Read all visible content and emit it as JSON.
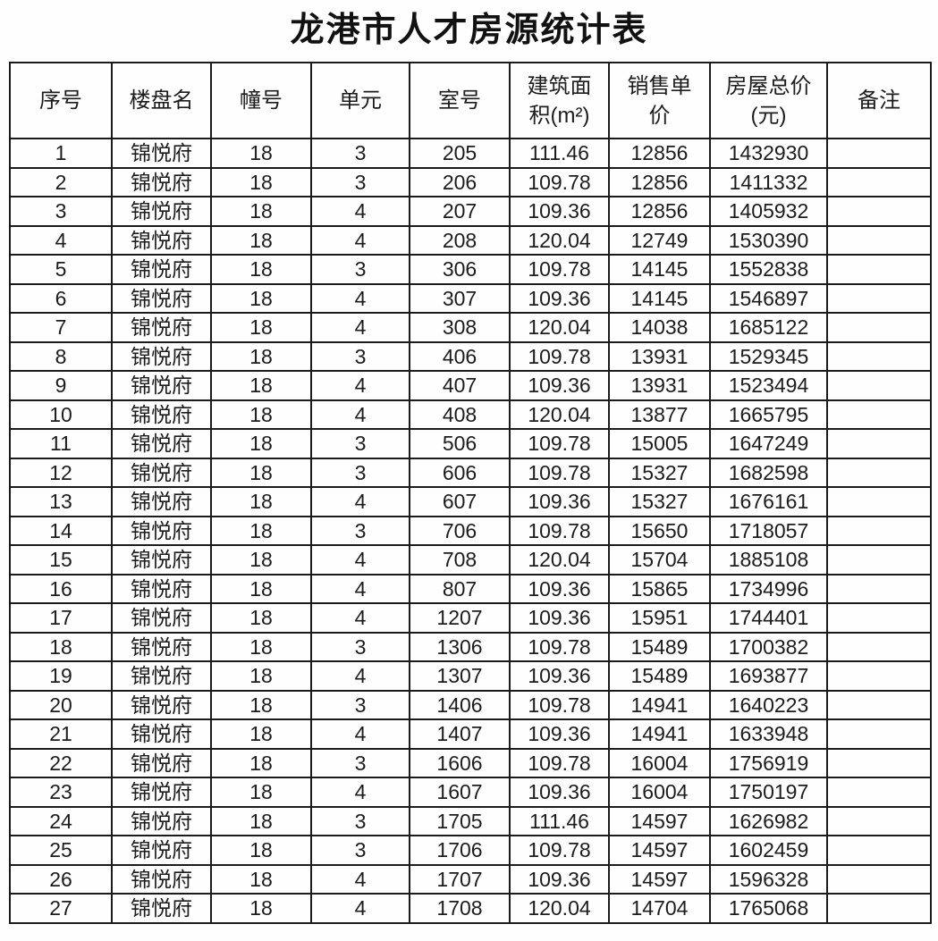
{
  "title": "龙港市人才房源统计表",
  "table": {
    "headers": [
      "序号",
      "楼盘名",
      "幢号",
      "单元",
      "室号",
      "建筑面\n积(m²)",
      "销售单\n价",
      "房屋总价\n(元)",
      "备注"
    ],
    "rows": [
      [
        "1",
        "锦悦府",
        "18",
        "3",
        "205",
        "111.46",
        "12856",
        "1432930",
        ""
      ],
      [
        "2",
        "锦悦府",
        "18",
        "3",
        "206",
        "109.78",
        "12856",
        "1411332",
        ""
      ],
      [
        "3",
        "锦悦府",
        "18",
        "4",
        "207",
        "109.36",
        "12856",
        "1405932",
        ""
      ],
      [
        "4",
        "锦悦府",
        "18",
        "4",
        "208",
        "120.04",
        "12749",
        "1530390",
        ""
      ],
      [
        "5",
        "锦悦府",
        "18",
        "3",
        "306",
        "109.78",
        "14145",
        "1552838",
        ""
      ],
      [
        "6",
        "锦悦府",
        "18",
        "4",
        "307",
        "109.36",
        "14145",
        "1546897",
        ""
      ],
      [
        "7",
        "锦悦府",
        "18",
        "4",
        "308",
        "120.04",
        "14038",
        "1685122",
        ""
      ],
      [
        "8",
        "锦悦府",
        "18",
        "3",
        "406",
        "109.78",
        "13931",
        "1529345",
        ""
      ],
      [
        "9",
        "锦悦府",
        "18",
        "4",
        "407",
        "109.36",
        "13931",
        "1523494",
        ""
      ],
      [
        "10",
        "锦悦府",
        "18",
        "4",
        "408",
        "120.04",
        "13877",
        "1665795",
        ""
      ],
      [
        "11",
        "锦悦府",
        "18",
        "3",
        "506",
        "109.78",
        "15005",
        "1647249",
        ""
      ],
      [
        "12",
        "锦悦府",
        "18",
        "3",
        "606",
        "109.78",
        "15327",
        "1682598",
        ""
      ],
      [
        "13",
        "锦悦府",
        "18",
        "4",
        "607",
        "109.36",
        "15327",
        "1676161",
        ""
      ],
      [
        "14",
        "锦悦府",
        "18",
        "3",
        "706",
        "109.78",
        "15650",
        "1718057",
        ""
      ],
      [
        "15",
        "锦悦府",
        "18",
        "4",
        "708",
        "120.04",
        "15704",
        "1885108",
        ""
      ],
      [
        "16",
        "锦悦府",
        "18",
        "4",
        "807",
        "109.36",
        "15865",
        "1734996",
        ""
      ],
      [
        "17",
        "锦悦府",
        "18",
        "4",
        "1207",
        "109.36",
        "15951",
        "1744401",
        ""
      ],
      [
        "18",
        "锦悦府",
        "18",
        "3",
        "1306",
        "109.78",
        "15489",
        "1700382",
        ""
      ],
      [
        "19",
        "锦悦府",
        "18",
        "4",
        "1307",
        "109.36",
        "15489",
        "1693877",
        ""
      ],
      [
        "20",
        "锦悦府",
        "18",
        "3",
        "1406",
        "109.78",
        "14941",
        "1640223",
        ""
      ],
      [
        "21",
        "锦悦府",
        "18",
        "4",
        "1407",
        "109.36",
        "14941",
        "1633948",
        ""
      ],
      [
        "22",
        "锦悦府",
        "18",
        "3",
        "1606",
        "109.78",
        "16004",
        "1756919",
        ""
      ],
      [
        "23",
        "锦悦府",
        "18",
        "4",
        "1607",
        "109.36",
        "16004",
        "1750197",
        ""
      ],
      [
        "24",
        "锦悦府",
        "18",
        "3",
        "1705",
        "111.46",
        "14597",
        "1626982",
        ""
      ],
      [
        "25",
        "锦悦府",
        "18",
        "3",
        "1706",
        "109.78",
        "14597",
        "1602459",
        ""
      ],
      [
        "26",
        "锦悦府",
        "18",
        "4",
        "1707",
        "109.36",
        "14597",
        "1596328",
        ""
      ],
      [
        "27",
        "锦悦府",
        "18",
        "4",
        "1708",
        "120.04",
        "14704",
        "1765068",
        ""
      ]
    ]
  },
  "colors": {
    "background": "#fefefe",
    "border": "#1b1b1b",
    "text": "#1c1c1c",
    "title_text": "#111111"
  }
}
